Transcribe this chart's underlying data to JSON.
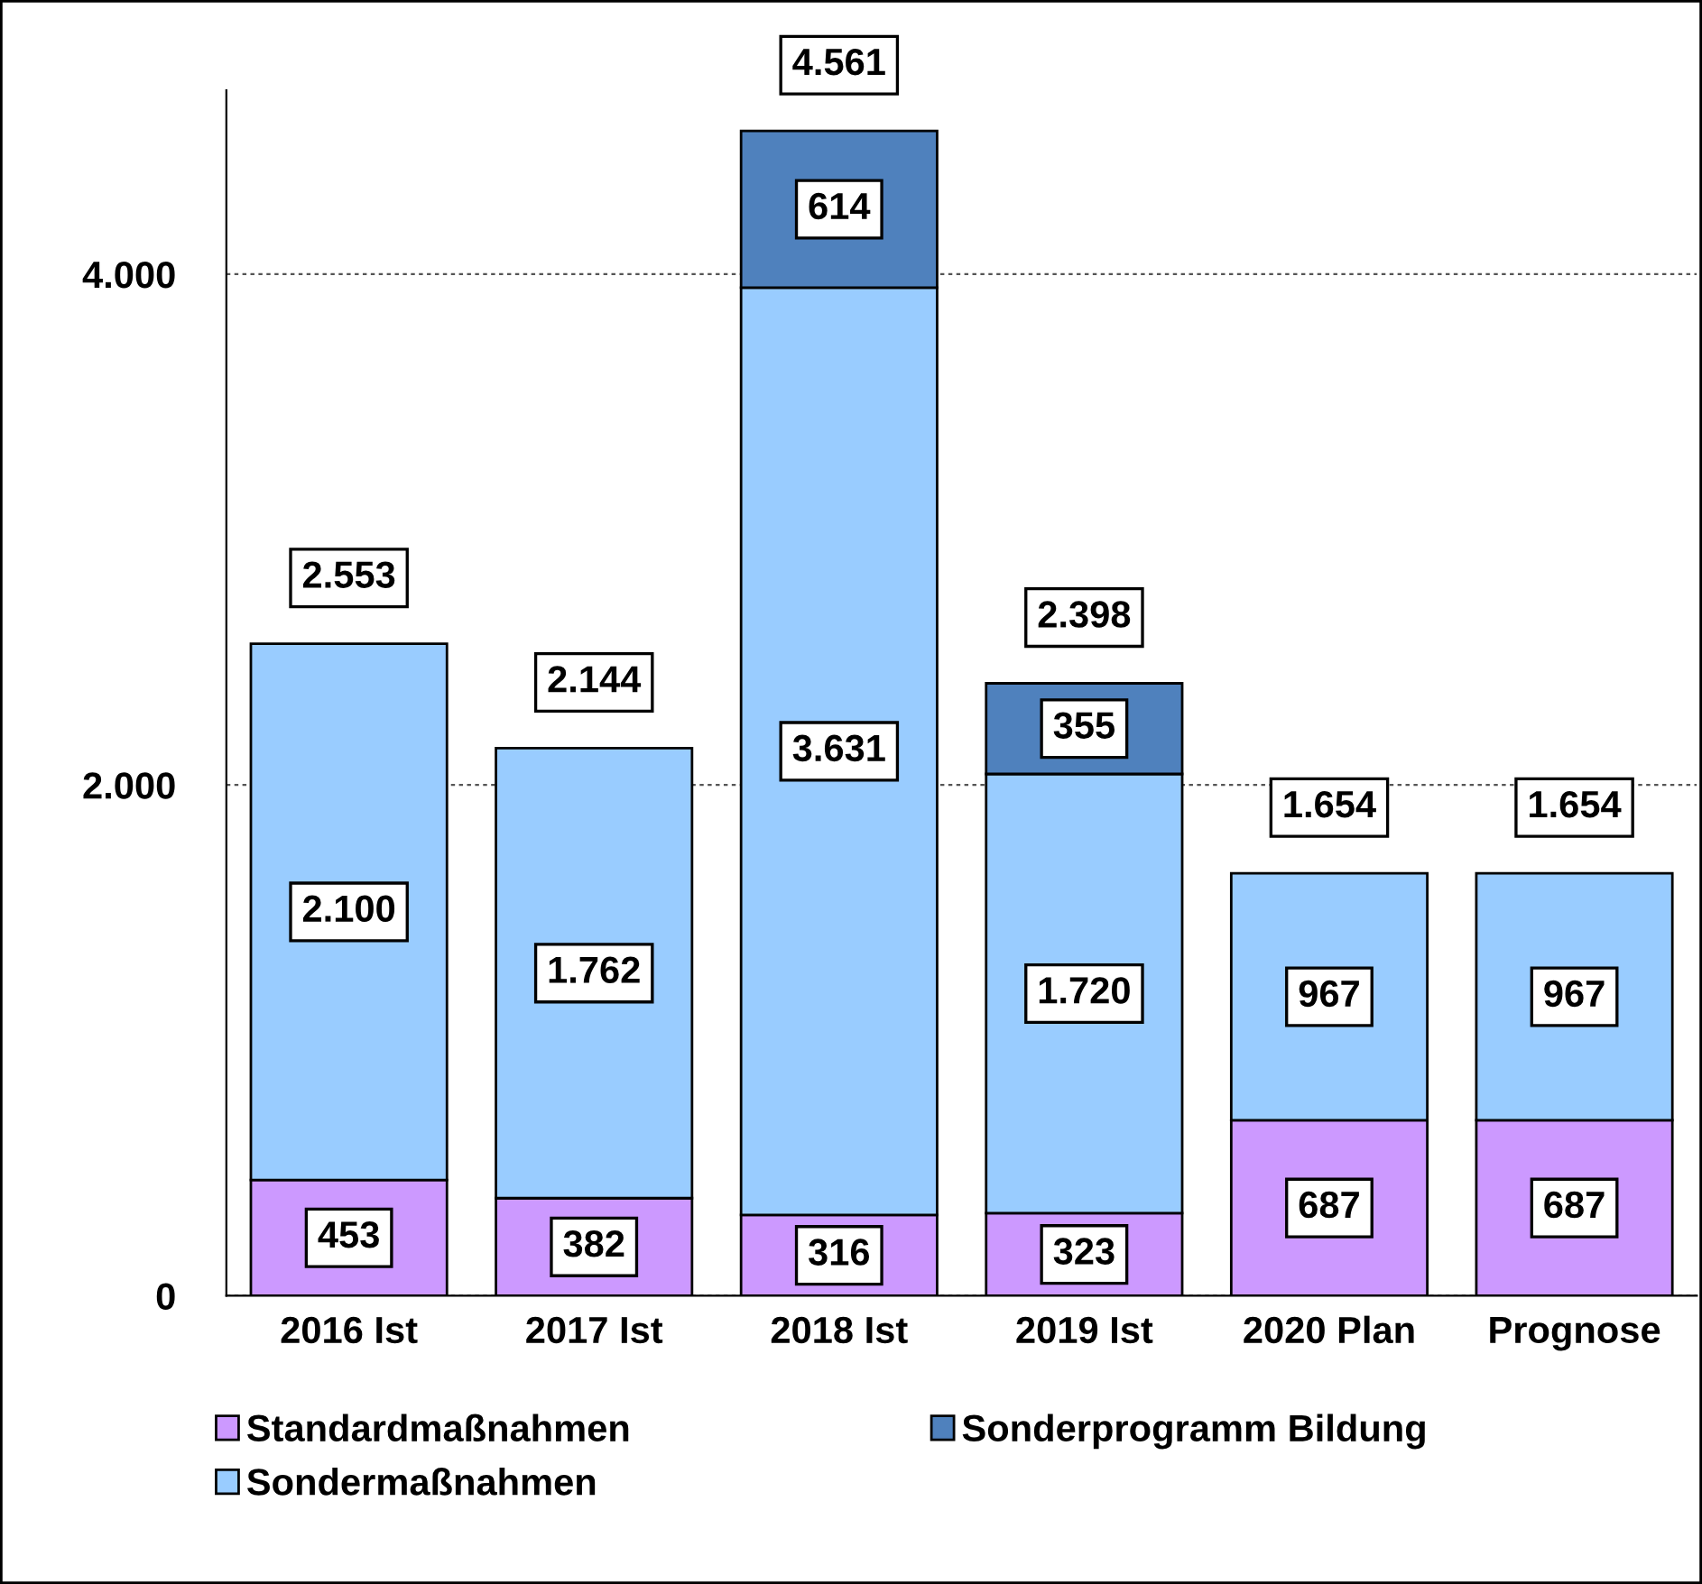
{
  "chart_data": {
    "type": "bar",
    "stacked": true,
    "categories": [
      "2016 Ist",
      "2017 Ist",
      "2018 Ist",
      "2019 Ist",
      "2020 Plan",
      "Prognose"
    ],
    "series": [
      {
        "name": "Standardmaßnahmen",
        "color": "#cc99ff",
        "values": [
          453,
          382,
          316,
          323,
          687,
          687
        ],
        "value_labels": [
          "453",
          "382",
          "316",
          "323",
          "687",
          "687"
        ]
      },
      {
        "name": "Sondermaßnahmen",
        "color": "#99ccff",
        "values": [
          2100,
          1762,
          3631,
          1720,
          967,
          967
        ],
        "value_labels": [
          "2.100",
          "1.762",
          "3.631",
          "1.720",
          "967",
          "967"
        ]
      },
      {
        "name": "Sonderprogramm Bildung",
        "color": "#4f81bd",
        "values": [
          null,
          null,
          614,
          355,
          null,
          null
        ],
        "value_labels": [
          null,
          null,
          "614",
          "355",
          null,
          null
        ]
      }
    ],
    "totals": [
      "2.553",
      "2.144",
      "4.561",
      "2.398",
      "1.654",
      "1.654"
    ],
    "ylim": [
      0,
      4720
    ],
    "yticks": [
      {
        "value": 0,
        "label": "0"
      },
      {
        "value": 2000,
        "label": "2.000"
      },
      {
        "value": 4000,
        "label": "4.000"
      }
    ],
    "grid": "y",
    "legend": "bottom"
  }
}
